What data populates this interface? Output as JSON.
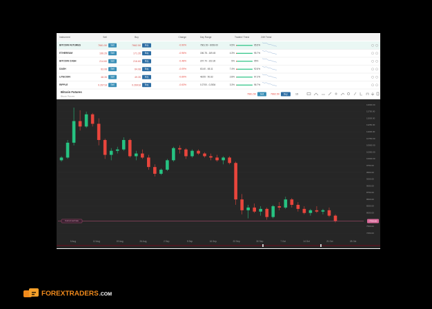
{
  "table": {
    "headers": [
      "Instrument",
      "Sell",
      "Buy",
      "Change",
      "Day Range",
      "Traders' Trend",
      "24H Trend"
    ],
    "sell_button": "Sell",
    "buy_button": "Buy",
    "rows": [
      {
        "instrument": "BITCOIN FUTURES",
        "sell": "7661.50",
        "buy": "7662.50",
        "change": "-0.90%",
        "day_range": "7661.50 - 8069.00",
        "trend_sell": "4.5%",
        "trend_buy": "95.5%"
      },
      {
        "instrument": "ETHEREUM",
        "sell": "166.26",
        "buy": "171.26",
        "change": "-0.96%",
        "day_range": "156.78 - 169.45",
        "trend_sell": "4.3%",
        "trend_buy": "95.7%"
      },
      {
        "instrument": "BITCOIN CASH",
        "sell": "214.60",
        "buy": "216.60",
        "change": "-0.48%",
        "day_range": "207.70 - 222.30",
        "trend_sell": "5%",
        "trend_buy": "95%"
      },
      {
        "instrument": "DASH",
        "sell": "63.08",
        "buy": "64.08",
        "change": "-0.09%",
        "day_range": "63.40 - 65.11",
        "trend_sell": "7.4%",
        "trend_buy": "92.6%"
      },
      {
        "instrument": "LITECOIN",
        "sell": "48.35",
        "buy": "49.35",
        "change": "-0.69%",
        "day_range": "48.55 - 50.32",
        "trend_sell": "2.8%",
        "trend_buy": "97.2%"
      },
      {
        "instrument": "RIPPLE",
        "sell": "0.26718",
        "buy": "0.26918",
        "change": "-0.63%",
        "day_range": "0.2700 - 0.2834",
        "trend_sell": "3.3%",
        "trend_buy": "96.7%"
      }
    ]
  },
  "chart": {
    "title": "Bitcoin Futures",
    "subtitle": "Bitcoin Futures",
    "sell": "7661.50",
    "buy": "7662.50",
    "interval": "1D",
    "price_tag": "7700.00",
    "line_label": "Current sell rate",
    "up_color": "#26c281",
    "down_color": "#e8453c",
    "xlabels": [
      "5 Aug",
      "12 Aug",
      "19 Aug",
      "26 Aug",
      "2 Sep",
      "9 Sep",
      "16 Sep",
      "23 Sep",
      "30 Sep",
      "7 Oct",
      "14 Oct",
      "21 Oct",
      "28 Oct"
    ],
    "ylim": [
      7100,
      12180
    ],
    "yticks": [
      {
        "value": 12000,
        "label": "12000.00"
      },
      {
        "value": 11750,
        "label": "11750.00"
      },
      {
        "value": 11500,
        "label": "11500.00"
      },
      {
        "value": 11250,
        "label": "11250.00"
      },
      {
        "value": 11000,
        "label": "11000.00"
      },
      {
        "value": 10750,
        "label": "10750.00"
      },
      {
        "value": 10500,
        "label": "10500.00"
      },
      {
        "value": 10250,
        "label": "10250.00"
      },
      {
        "value": 10000,
        "label": "10000.00"
      },
      {
        "value": 9750,
        "label": "9750.00"
      },
      {
        "value": 9500,
        "label": "9500.00"
      },
      {
        "value": 9250,
        "label": "9250.00"
      },
      {
        "value": 9000,
        "label": "9000.00"
      },
      {
        "value": 8750,
        "label": "8750.00"
      },
      {
        "value": 8500,
        "label": "8500.00"
      },
      {
        "value": 8250,
        "label": "8250.00"
      },
      {
        "value": 8000,
        "label": "8000.00"
      },
      {
        "value": 7500,
        "label": "7500.00"
      },
      {
        "value": 7250,
        "label": "7250.00"
      }
    ],
    "candles": [
      [
        9950,
        10100,
        9900,
        10050
      ],
      [
        10050,
        10700,
        10000,
        10600
      ],
      [
        10600,
        11900,
        10500,
        11400
      ],
      [
        11400,
        11800,
        11050,
        11200
      ],
      [
        11200,
        11750,
        11150,
        11650
      ],
      [
        11650,
        11700,
        11200,
        11300
      ],
      [
        11300,
        11500,
        10500,
        10700
      ],
      [
        10700,
        10750,
        10000,
        10150
      ],
      [
        10150,
        10400,
        9950,
        10300
      ],
      [
        10300,
        10450,
        10200,
        10350
      ],
      [
        10350,
        10800,
        10300,
        10700
      ],
      [
        10700,
        10750,
        10050,
        10100
      ],
      [
        10100,
        10300,
        9950,
        10200
      ],
      [
        10200,
        10350,
        10000,
        10050
      ],
      [
        10050,
        10150,
        9600,
        9700
      ],
      [
        9700,
        9800,
        9350,
        9450
      ],
      [
        9450,
        9650,
        9400,
        9600
      ],
      [
        9600,
        10000,
        9550,
        9950
      ],
      [
        9950,
        10450,
        9900,
        10400
      ],
      [
        10400,
        10500,
        10200,
        10350
      ],
      [
        10350,
        10400,
        10000,
        10100
      ],
      [
        10100,
        10350,
        10050,
        10300
      ],
      [
        10300,
        10350,
        10150,
        10200
      ],
      [
        10200,
        10250,
        10050,
        10100
      ],
      [
        10100,
        10200,
        9950,
        10050
      ],
      [
        10050,
        10150,
        9900,
        9950
      ],
      [
        9950,
        10100,
        9800,
        10050
      ],
      [
        10050,
        10100,
        9800,
        9850
      ],
      [
        9850,
        9900,
        8300,
        8500
      ],
      [
        8500,
        8700,
        7950,
        8100
      ],
      [
        8100,
        8300,
        7800,
        8200
      ],
      [
        8200,
        8350,
        8000,
        8050
      ],
      [
        8050,
        8250,
        7900,
        8150
      ],
      [
        8150,
        8200,
        7750,
        7850
      ],
      [
        7850,
        8300,
        7800,
        8250
      ],
      [
        8250,
        8400,
        8100,
        8200
      ],
      [
        8200,
        8600,
        8150,
        8500
      ],
      [
        8500,
        8550,
        8200,
        8300
      ],
      [
        8300,
        8400,
        8050,
        8150
      ],
      [
        8150,
        8250,
        7950,
        8000
      ],
      [
        8000,
        8150,
        7900,
        8100
      ],
      [
        8100,
        8250,
        8000,
        8050
      ],
      [
        8050,
        8150,
        7950,
        8100
      ],
      [
        8100,
        8200,
        7850,
        7900
      ],
      [
        7900,
        7950,
        7650,
        7700
      ]
    ]
  },
  "logo": {
    "brand": "FOREXTRADERS",
    "suffix": ".COM"
  }
}
